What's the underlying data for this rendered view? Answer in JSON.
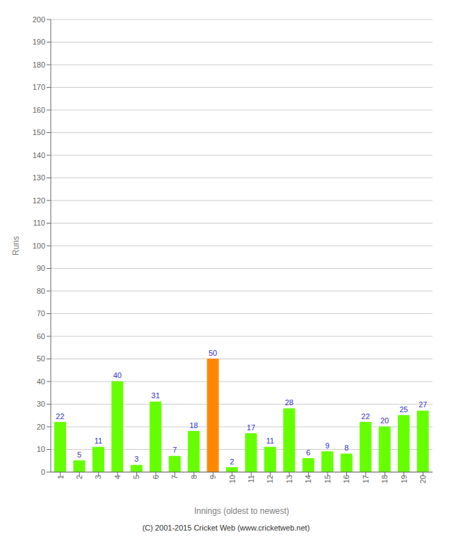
{
  "chart_data": {
    "type": "bar",
    "xlabel": "Innings (oldest to newest)",
    "ylabel": "Runs",
    "categories": [
      "1",
      "2",
      "3",
      "4",
      "5",
      "6",
      "7",
      "8",
      "9",
      "10",
      "11",
      "12",
      "13",
      "14",
      "15",
      "16",
      "17",
      "18",
      "19",
      "20"
    ],
    "values": [
      22,
      5,
      11,
      40,
      3,
      31,
      7,
      18,
      50,
      2,
      17,
      11,
      28,
      6,
      9,
      8,
      22,
      20,
      25,
      27
    ],
    "colors": [
      "#66ff00",
      "#66ff00",
      "#66ff00",
      "#66ff00",
      "#66ff00",
      "#66ff00",
      "#66ff00",
      "#66ff00",
      "#ff8800",
      "#66ff00",
      "#66ff00",
      "#66ff00",
      "#66ff00",
      "#66ff00",
      "#66ff00",
      "#66ff00",
      "#66ff00",
      "#66ff00",
      "#66ff00",
      "#66ff00"
    ],
    "ylim": [
      0,
      200
    ],
    "yticks": [
      0,
      10,
      20,
      30,
      40,
      50,
      60,
      70,
      80,
      90,
      100,
      110,
      120,
      130,
      140,
      150,
      160,
      170,
      180,
      190,
      200
    ],
    "grid": true,
    "data_labels": true,
    "annotations": [
      "(C) 2001-2015 Cricket Web (www.cricketweb.net)"
    ]
  }
}
